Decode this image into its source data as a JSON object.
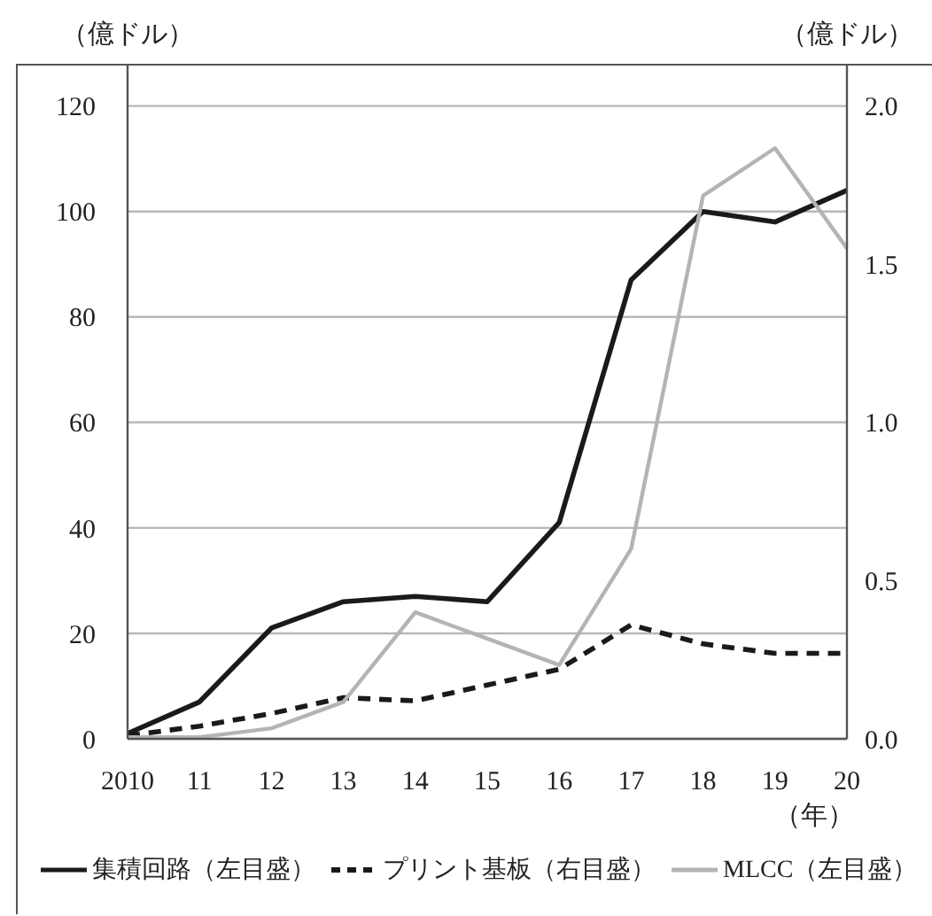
{
  "chart_data": {
    "type": "line",
    "ylabel": "（億ドル）",
    "y2label": "（億ドル）",
    "xlabel": "（年）",
    "categories": [
      "2010",
      "11",
      "12",
      "13",
      "14",
      "15",
      "16",
      "17",
      "18",
      "19",
      "20"
    ],
    "series": [
      {
        "name": "集積回路（左目盛）",
        "color": "#1a1a1a",
        "values": [
          1,
          7,
          21,
          26,
          27,
          26,
          41,
          87,
          100,
          98,
          104
        ]
      },
      {
        "name": "プリント基板（右目盛）",
        "color": "#1a1a1a",
        "axis": "y2",
        "line_style": "dashed",
        "values": [
          0.01,
          0.04,
          0.08,
          0.13,
          0.12,
          0.17,
          0.22,
          0.36,
          0.3,
          0.27,
          0.27
        ]
      },
      {
        "name": "MLCC（左目盛）",
        "color": "#b4b4b4",
        "values": [
          0.3,
          0.3,
          2,
          7,
          24,
          19,
          14,
          36,
          103,
          112,
          93
        ]
      }
    ],
    "ylim": [
      0,
      128
    ],
    "yticks": [
      0,
      20,
      40,
      60,
      80,
      100,
      120
    ],
    "y2lim": [
      0,
      2.1333
    ],
    "y2ticks": [
      {
        "value": 0,
        "label": "0.0"
      },
      0.5,
      {
        "value": 1,
        "label": "1.0"
      },
      1.5,
      {
        "value": 2,
        "label": "2.0"
      }
    ],
    "grid": "y",
    "legend": "bottom",
    "marker": "none",
    "line_style": "solid"
  }
}
